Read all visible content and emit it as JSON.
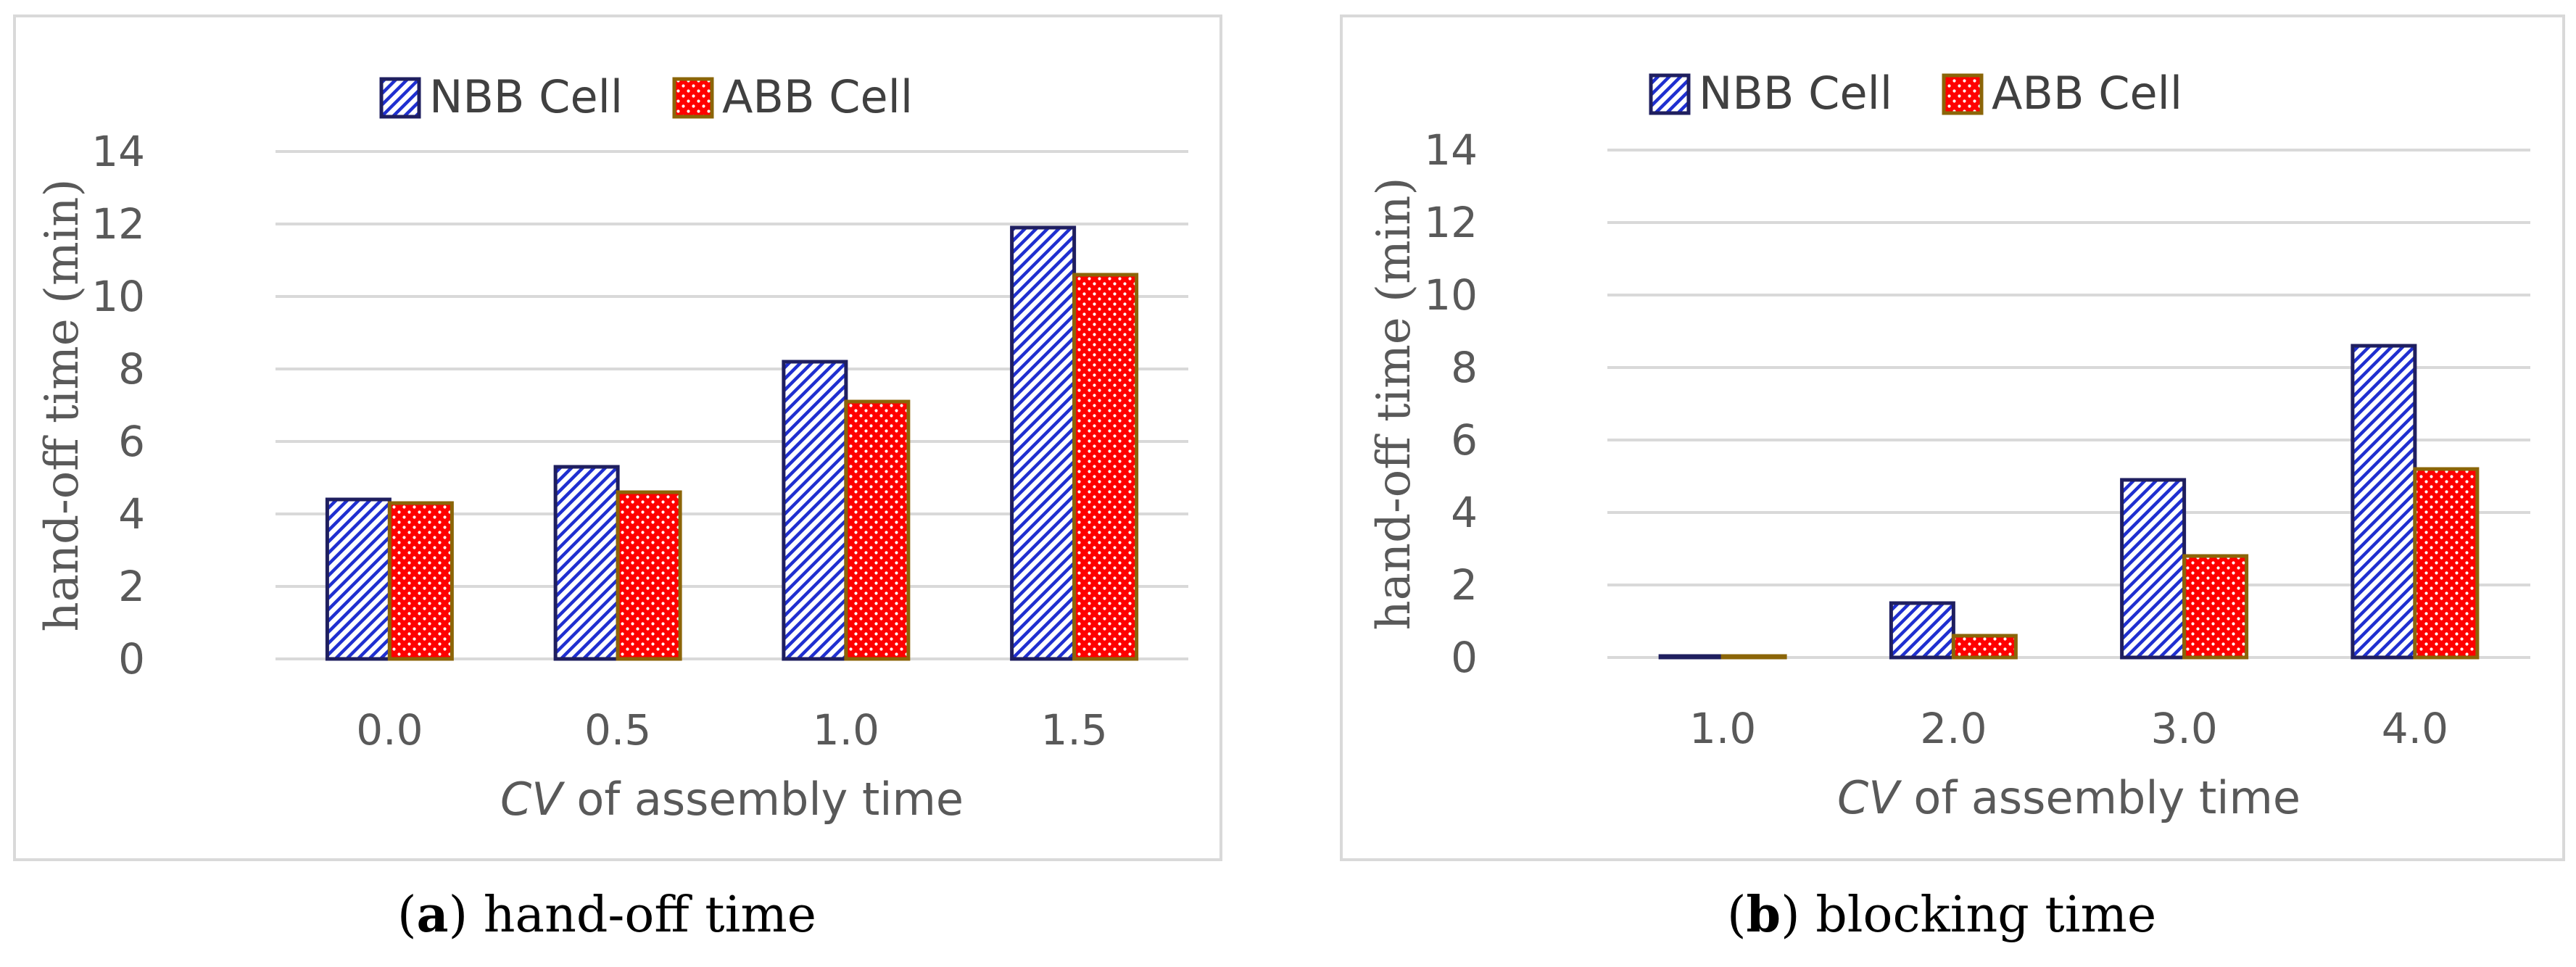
{
  "colors": {
    "nbb_stroke": "#1f1f5f",
    "nbb_hatch": "#1f2fd0",
    "abb_fill": "#ff0000",
    "abb_stroke": "#8b6508",
    "gridline": "#d9d9d9",
    "text": "#595959"
  },
  "captions": [
    {
      "letter": "a",
      "text": "hand-off time"
    },
    {
      "letter": "b",
      "text": "blocking time"
    }
  ],
  "chart_data": [
    {
      "type": "bar",
      "title": "(a) hand-off time",
      "xlabel_italic": "CV",
      "xlabel_rest": " of assembly time",
      "ylabel": "hand-off time (min)",
      "ylim": [
        0,
        14
      ],
      "yticks": [
        "0",
        "2",
        "4",
        "6",
        "8",
        "10",
        "12",
        "14"
      ],
      "categories": [
        "0.0",
        "0.5",
        "1.0",
        "1.5"
      ],
      "legend_position": "top",
      "series": [
        {
          "name": "NBB Cell",
          "values": [
            4.4,
            5.3,
            8.2,
            11.9
          ]
        },
        {
          "name": "ABB Cell",
          "values": [
            4.3,
            4.6,
            7.1,
            10.6
          ]
        }
      ]
    },
    {
      "type": "bar",
      "title": "(b) blocking time",
      "xlabel_italic": "CV",
      "xlabel_rest": " of assembly time",
      "ylabel": "hand-off time (min)",
      "ylim": [
        0,
        14
      ],
      "yticks": [
        "0",
        "2",
        "4",
        "6",
        "8",
        "10",
        "12",
        "14"
      ],
      "categories": [
        "1.0",
        "2.0",
        "3.0",
        "4.0"
      ],
      "legend_position": "top",
      "series": [
        {
          "name": "NBB Cell",
          "values": [
            0.0,
            1.5,
            4.9,
            8.6
          ]
        },
        {
          "name": "ABB Cell",
          "values": [
            0.0,
            0.6,
            2.8,
            5.2
          ]
        }
      ]
    }
  ]
}
